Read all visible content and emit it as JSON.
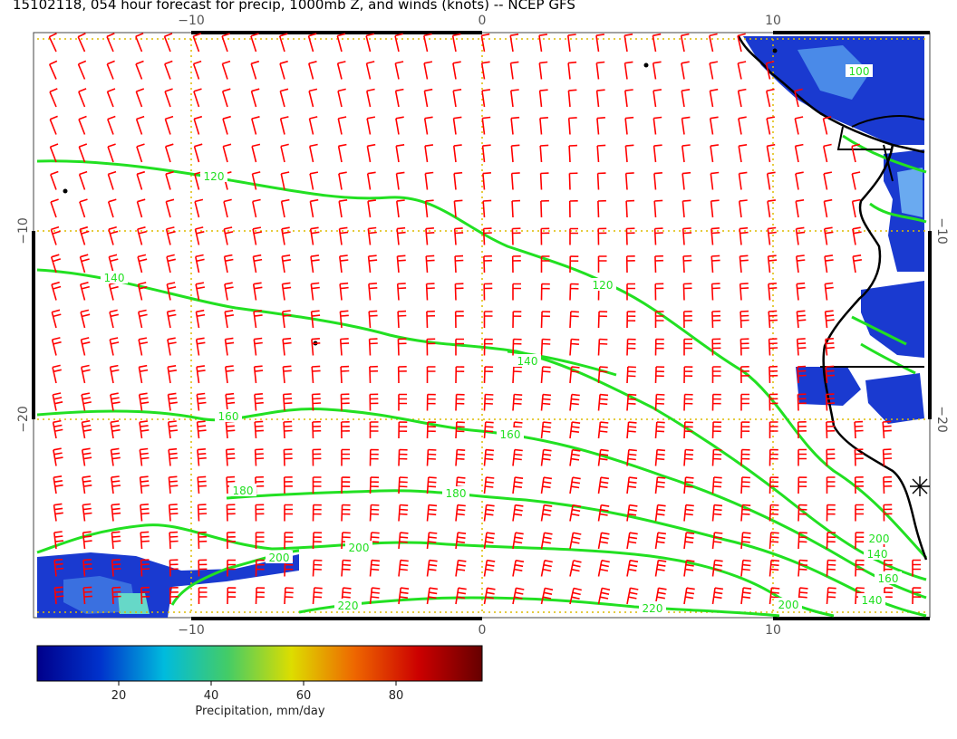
{
  "title": "15102118, 054 hour forecast for precip, 1000mb Z, and winds (knots) -- NCEP GFS",
  "axes": {
    "x_ticks": [
      "−10",
      "0",
      "10"
    ],
    "y_ticks": [
      "−10",
      "−20"
    ]
  },
  "contours": {
    "color": "#22e022",
    "labels": [
      "100",
      "120",
      "140",
      "160",
      "180",
      "200",
      "220"
    ]
  },
  "colorbar": {
    "title": "Precipitation, mm/day",
    "ticks": [
      "20",
      "40",
      "60",
      "80"
    ],
    "colors": [
      "#00008b",
      "#0033cc",
      "#00bbdd",
      "#44cc66",
      "#dddd00",
      "#ee6600",
      "#cc0000",
      "#660000"
    ]
  },
  "styling": {
    "wind_barb_color": "#ff0000",
    "coastline_color": "#000000",
    "grid_color": "#ddbb00"
  }
}
